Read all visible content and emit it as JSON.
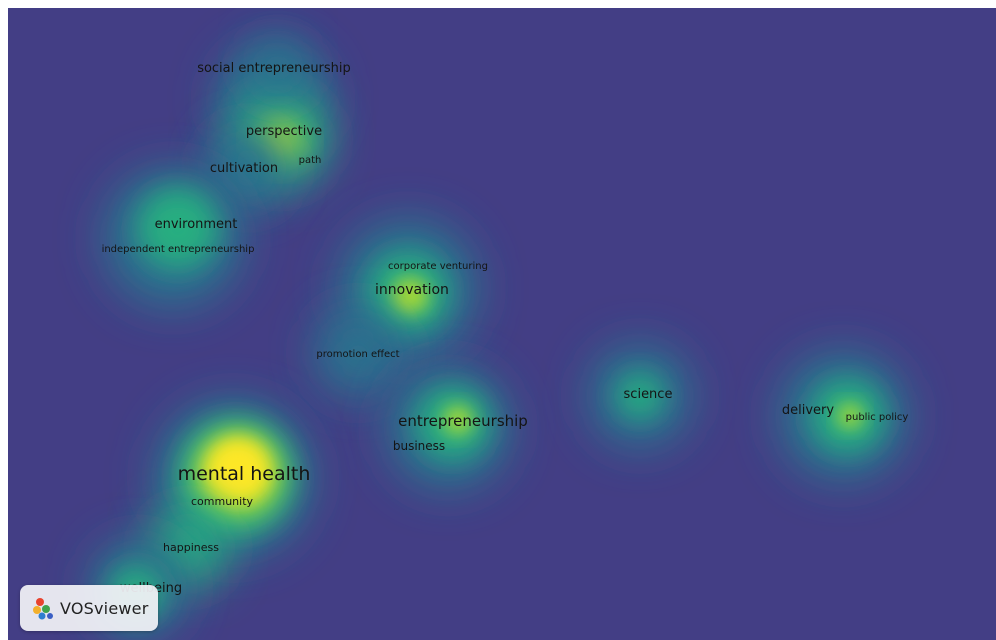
{
  "app": {
    "name": "VOSviewer"
  },
  "view": "density-visualization",
  "colors": {
    "background": "#433e85",
    "density_stops": [
      "#433e85",
      "#2c728e",
      "#28ae80",
      "#addc30",
      "#fde725"
    ]
  },
  "terms": [
    {
      "id": "social-entrepreneurship",
      "label": "social entrepreneurship",
      "weight": 0.3
    },
    {
      "id": "perspective",
      "label": "perspective",
      "weight": 0.55
    },
    {
      "id": "path",
      "label": "path",
      "weight": 0.25
    },
    {
      "id": "cultivation",
      "label": "cultivation",
      "weight": 0.3
    },
    {
      "id": "environment",
      "label": "environment",
      "weight": 0.45
    },
    {
      "id": "independent-entrepreneurship",
      "label": "independent entrepreneurship",
      "weight": 0.25
    },
    {
      "id": "corporate-venturing",
      "label": "corporate venturing",
      "weight": 0.25
    },
    {
      "id": "innovation",
      "label": "innovation",
      "weight": 0.55
    },
    {
      "id": "promotion-effect",
      "label": "promotion effect",
      "weight": 0.3
    },
    {
      "id": "science",
      "label": "science",
      "weight": 0.4
    },
    {
      "id": "delivery",
      "label": "delivery",
      "weight": 0.45
    },
    {
      "id": "public-policy",
      "label": "public policy",
      "weight": 0.3
    },
    {
      "id": "entrepreneurship",
      "label": "entrepreneurship",
      "weight": 0.55
    },
    {
      "id": "business",
      "label": "business",
      "weight": 0.35
    },
    {
      "id": "mental-health",
      "label": "mental health",
      "weight": 1.0
    },
    {
      "id": "community",
      "label": "community",
      "weight": 0.4
    },
    {
      "id": "happiness",
      "label": "happiness",
      "weight": 0.3
    },
    {
      "id": "wellbeing",
      "label": "wellbeing",
      "weight": 0.4
    }
  ]
}
